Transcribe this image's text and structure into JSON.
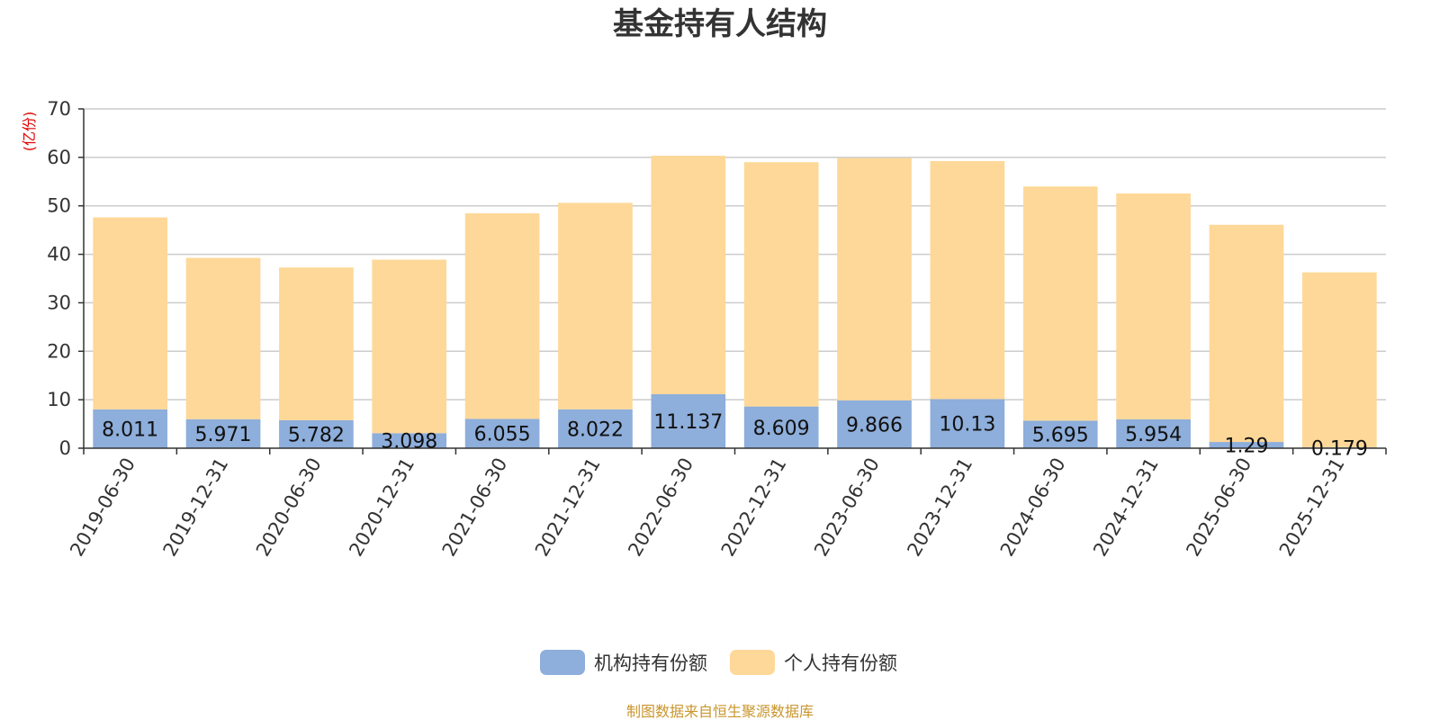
{
  "colors": {
    "institution": "#8eaedb",
    "individual": "#fed898",
    "grid": "#cccccc",
    "axis": "#333333",
    "unit": "#e00000",
    "source": "#c9962c"
  },
  "chart_data": {
    "type": "bar",
    "stacked": true,
    "title": "基金持有人结构",
    "unit_label": "(亿份)",
    "categories": [
      "2019-06-30",
      "2019-12-31",
      "2020-06-30",
      "2020-12-31",
      "2021-06-30",
      "2021-12-31",
      "2022-06-30",
      "2022-12-31",
      "2023-06-30",
      "2023-12-31",
      "2024-06-30",
      "2024-12-31",
      "2025-06-30",
      "2025-12-31"
    ],
    "series": [
      {
        "name": "机构持有份额",
        "color": "#8eaedb",
        "values": [
          8.011,
          5.971,
          5.782,
          3.098,
          6.055,
          8.022,
          11.137,
          8.609,
          9.866,
          10.13,
          5.695,
          5.954,
          1.29,
          0.179
        ],
        "labels": [
          "8.011",
          "5.971",
          "5.782",
          "3.098",
          "6.055",
          "8.022",
          "11.137",
          "8.609",
          "9.866",
          "10.13",
          "5.695",
          "5.954",
          "1.29",
          "0.179"
        ]
      },
      {
        "name": "个人持有份额",
        "color": "#fed898",
        "values": [
          39.6,
          33.3,
          31.5,
          35.8,
          42.4,
          42.6,
          49.2,
          50.4,
          50.0,
          49.1,
          48.3,
          46.6,
          44.8,
          36.1
        ]
      }
    ],
    "ylim": [
      0,
      70
    ],
    "yticks": [
      0,
      10,
      20,
      30,
      40,
      50,
      60,
      70
    ],
    "grid": true,
    "legend_position": "bottom-center",
    "source_note": "制图数据来自恒生聚源数据库"
  }
}
